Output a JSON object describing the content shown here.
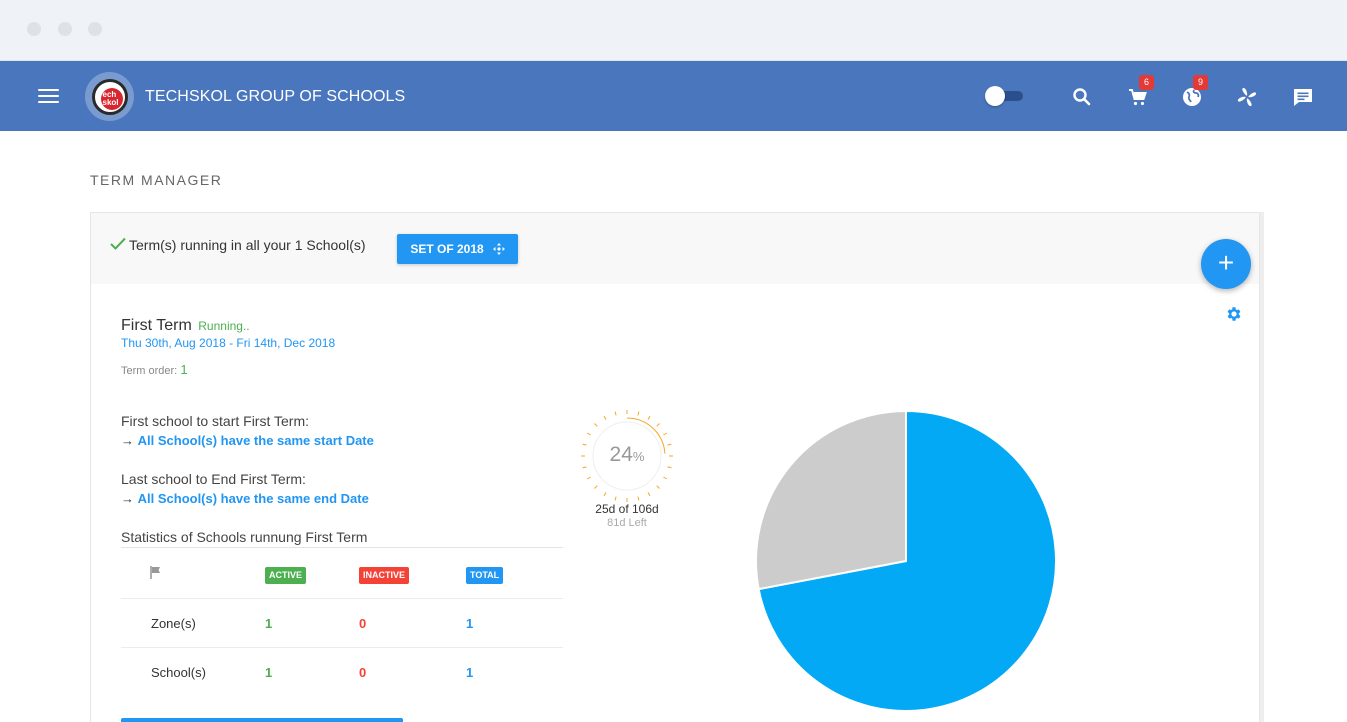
{
  "header": {
    "brand": "TECHSKOL GROUP OF SCHOOLS",
    "cart_badge": "6",
    "globe_badge": "9",
    "colors": {
      "bar": "#4a76bd",
      "badge": "#e53935"
    }
  },
  "page": {
    "title": "TERM MANAGER"
  },
  "summary": {
    "message": "Term(s) running in all your 1 School(s)",
    "set_button": "SET OF 2018"
  },
  "term": {
    "name": "First Term",
    "status": "Running..",
    "dates": "Thu 30th, Aug 2018 - Fri 14th, Dec 2018",
    "order_label": "Term order:",
    "order_value": "1",
    "first_start_label": "First school to start First Term:",
    "first_start_arrow": "→",
    "first_start_link": "All School(s) have the same start Date",
    "last_end_label": "Last school to End First Term:",
    "last_end_arrow": "→",
    "last_end_link": "All School(s) have the same end Date"
  },
  "stats": {
    "title": "Statistics of Schools runnung First Term",
    "headers": [
      "ACTIVE",
      "INACTIVE",
      "TOTAL"
    ],
    "rows": [
      {
        "label": "Zone(s)",
        "active": "1",
        "inactive": "0",
        "total": "1"
      },
      {
        "label": "School(s)",
        "active": "1",
        "inactive": "0",
        "total": "1"
      }
    ]
  },
  "progress": {
    "percent": 24,
    "percent_unit": "%",
    "days": "25d of 106d",
    "left": "81d Left",
    "color": "#f5a623"
  },
  "chart_data": {
    "type": "pie",
    "title": "",
    "slices": [
      {
        "value": 72,
        "color": "#03a9f4"
      },
      {
        "value": 28,
        "color": "#cccccc"
      }
    ]
  }
}
